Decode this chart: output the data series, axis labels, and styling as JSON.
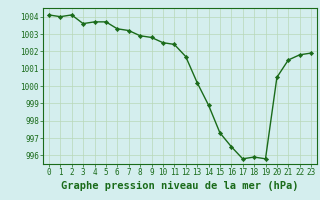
{
  "x": [
    0,
    1,
    2,
    3,
    4,
    5,
    6,
    7,
    8,
    9,
    10,
    11,
    12,
    13,
    14,
    15,
    16,
    17,
    18,
    19,
    20,
    21,
    22,
    23
  ],
  "y": [
    1004.1,
    1004.0,
    1004.1,
    1003.6,
    1003.7,
    1003.7,
    1003.3,
    1003.2,
    1002.9,
    1002.8,
    1002.5,
    1002.4,
    1001.7,
    1000.2,
    998.9,
    997.3,
    996.5,
    995.8,
    995.9,
    995.8,
    1000.5,
    1001.5,
    1001.8,
    1001.9
  ],
  "line_color": "#1a6b1a",
  "marker_color": "#1a6b1a",
  "bg_color": "#d4eeee",
  "grid_color": "#b8d8b8",
  "title": "Graphe pression niveau de la mer (hPa)",
  "ylim": [
    995.5,
    1004.5
  ],
  "yticks": [
    996,
    997,
    998,
    999,
    1000,
    1001,
    1002,
    1003,
    1004
  ],
  "xticks": [
    0,
    1,
    2,
    3,
    4,
    5,
    6,
    7,
    8,
    9,
    10,
    11,
    12,
    13,
    14,
    15,
    16,
    17,
    18,
    19,
    20,
    21,
    22,
    23
  ],
  "xtick_labels": [
    "0",
    "1",
    "2",
    "3",
    "4",
    "5",
    "6",
    "7",
    "8",
    "9",
    "10",
    "11",
    "12",
    "13",
    "14",
    "15",
    "16",
    "17",
    "18",
    "19",
    "20",
    "21",
    "22",
    "23"
  ],
  "title_fontsize": 7.5,
  "tick_fontsize": 5.5,
  "line_width": 1.0,
  "marker_size": 2.2
}
